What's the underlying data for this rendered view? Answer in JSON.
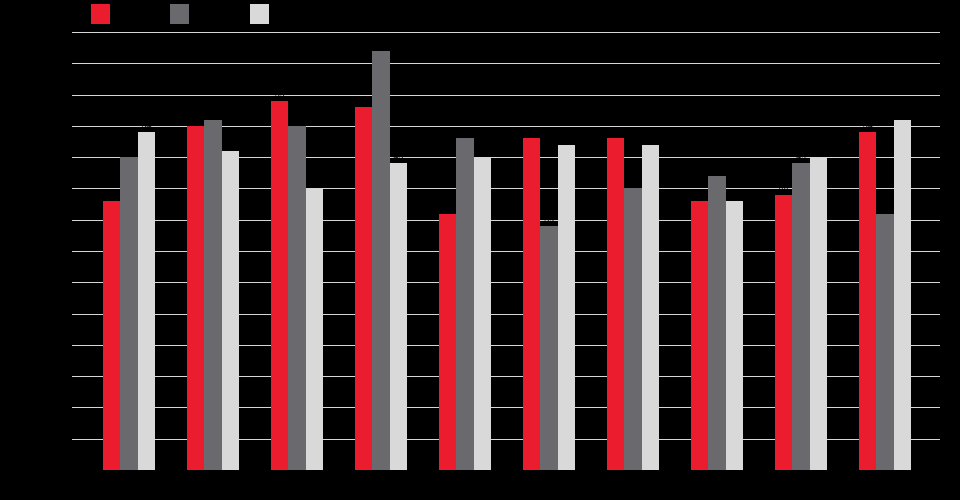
{
  "chart_data": {
    "type": "bar",
    "title": "",
    "categories": [
      "",
      "",
      "",
      "",
      "",
      "",
      "",
      "",
      "",
      ""
    ],
    "series": [
      {
        "name": "red",
        "color": "#EB1C2D",
        "values": [
          43,
          55,
          59,
          58,
          41,
          53,
          53,
          43,
          44,
          54
        ]
      },
      {
        "name": "dark-gray",
        "color": "#6A6A6E",
        "values": [
          50,
          56,
          55,
          67,
          53,
          39,
          45,
          47,
          49,
          41
        ]
      },
      {
        "name": "light-gray",
        "color": "#D9D9D9",
        "values": [
          54,
          51,
          45,
          49,
          50,
          52,
          52,
          43,
          50,
          56
        ]
      }
    ],
    "xlabel": "",
    "ylabel": "",
    "ylim": [
      0,
      70
    ],
    "gridline_step": 5,
    "grid": true,
    "legend_position": "top-left",
    "colors": {
      "background": "#000000",
      "gridline": "#D6D6D6",
      "text": "#000000"
    },
    "layout": {
      "plot_left": 72,
      "plot_right": 940,
      "top_y": 32,
      "baseline_y": 470,
      "first_group_left": 103,
      "group_pitch": 84,
      "bar_width": 17.4,
      "legend_swatch_xs": [
        91,
        170,
        250
      ],
      "legend_y": 4,
      "legend_swatch_w": 19,
      "legend_swatch_h": 20
    }
  },
  "legend": {
    "items": [
      {
        "label": "",
        "series": "red"
      },
      {
        "label": "",
        "series": "dark-gray"
      },
      {
        "label": "",
        "series": "light-gray"
      }
    ]
  }
}
